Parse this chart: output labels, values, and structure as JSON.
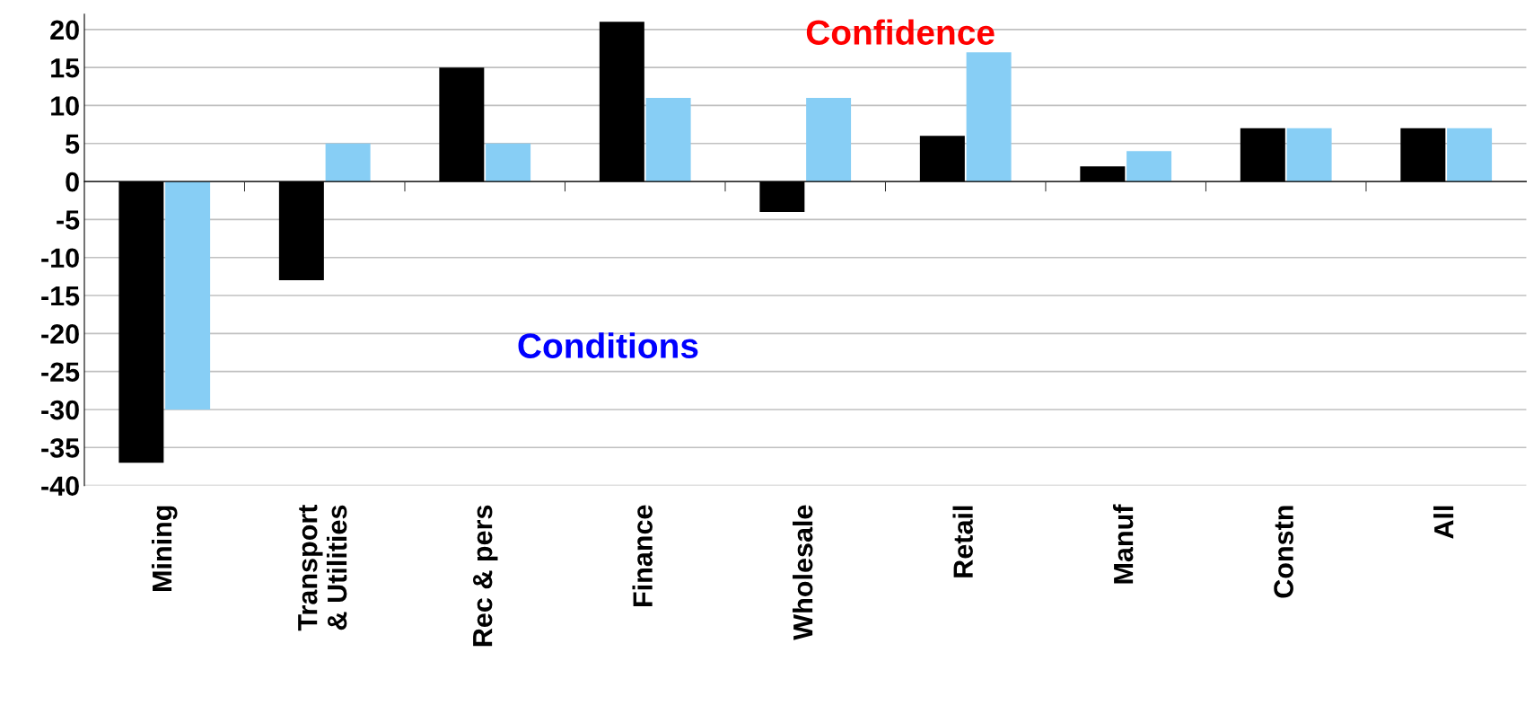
{
  "chart_data": {
    "type": "bar",
    "categories": [
      "Mining",
      "Transport\n& Utilities",
      "Rec & pers",
      "Finance",
      "Wholesale",
      "Retail",
      "Manuf",
      "Constn",
      "All"
    ],
    "series": [
      {
        "color": "#000000",
        "values": [
          -37,
          -13,
          15,
          21,
          -4,
          6,
          2,
          7,
          7
        ]
      },
      {
        "color": "#87cef5",
        "values": [
          -30,
          5,
          5,
          11,
          11,
          17,
          4,
          7,
          7
        ]
      }
    ],
    "annotations": [
      "Confidence",
      "Conditions"
    ],
    "ylim": [
      -40,
      22
    ],
    "yticks": [
      -40,
      -35,
      -30,
      -25,
      -20,
      -15,
      -10,
      -5,
      0,
      5,
      10,
      15,
      20
    ],
    "grid": "y",
    "legend": false
  }
}
